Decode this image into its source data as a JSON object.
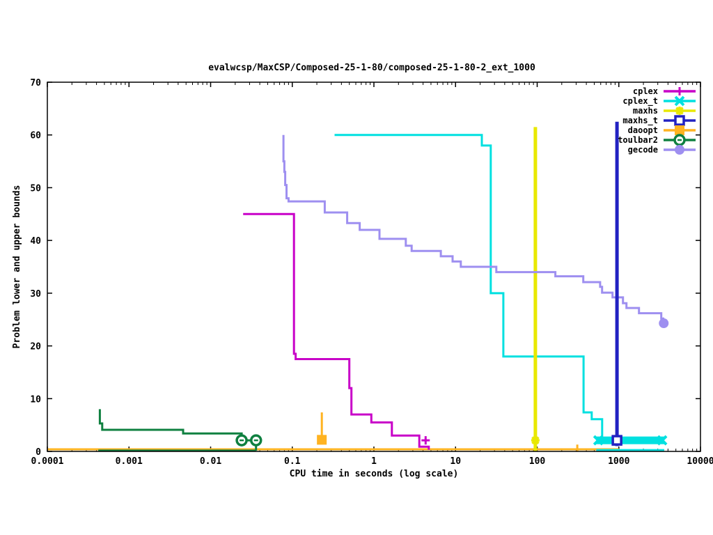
{
  "title": "evalwcsp/MaxCSP/Composed-25-1-80/composed-25-1-80-2_ext_1000",
  "chart_data": {
    "type": "line",
    "title": "evalwcsp/MaxCSP/Composed-25-1-80/composed-25-1-80-2_ext_1000",
    "xlabel": "CPU time in seconds (log scale)",
    "ylabel": "Problem lower and upper bounds",
    "x_scale": "log",
    "xlim": [
      0.0001,
      10000
    ],
    "ylim": [
      0,
      70
    ],
    "x_ticks": [
      0.0001,
      0.001,
      0.01,
      0.1,
      1,
      10,
      100,
      1000,
      10000
    ],
    "x_tick_labels": [
      "0.0001",
      "0.001",
      "0.01",
      "0.1",
      "1",
      "10",
      "100",
      "1000",
      "10000"
    ],
    "y_ticks": [
      0,
      10,
      20,
      30,
      40,
      50,
      60,
      70
    ],
    "grid": false,
    "legend_position": "top-right",
    "series": [
      {
        "name": "daoopt",
        "color": "#ffb321",
        "marker": "square-filled",
        "lw": 3,
        "lines": [
          [
            [
              0.0001,
              0.4
            ],
            [
              1000,
              0.4
            ]
          ],
          [
            [
              0.23,
              7.4
            ],
            [
              0.23,
              2.3
            ]
          ],
          [
            [
              310,
              0.05
            ],
            [
              310,
              1.3
            ]
          ]
        ],
        "markers_at": [
          [
            0.23,
            2.2
          ]
        ]
      },
      {
        "name": "toulbar2",
        "color": "#0f8040",
        "marker": "circle-open",
        "lw": 3,
        "lines": [
          [
            [
              0.00044,
              8
            ],
            [
              0.00044,
              5.3
            ],
            [
              0.00047,
              5.3
            ],
            [
              0.00047,
              4.1
            ],
            [
              0.0046,
              4.1
            ],
            [
              0.0046,
              3.4
            ],
            [
              0.024,
              3.4
            ],
            [
              0.024,
              2.1
            ],
            [
              0.036,
              2.1
            ],
            [
              0.036,
              0.15
            ]
          ],
          [
            [
              0.00042,
              0.15
            ],
            [
              0.036,
              0.15
            ]
          ]
        ],
        "markers_at": [
          [
            0.024,
            2.1
          ],
          [
            0.036,
            2.1
          ]
        ]
      },
      {
        "name": "cplex",
        "color": "#c800c8",
        "marker": "plus",
        "lw": 3,
        "lines": [
          [
            [
              0.025,
              45
            ],
            [
              0.105,
              45
            ],
            [
              0.105,
              18.5
            ],
            [
              0.11,
              18.5
            ],
            [
              0.11,
              17.5
            ],
            [
              0.5,
              17.5
            ],
            [
              0.5,
              12
            ],
            [
              0.53,
              12
            ],
            [
              0.53,
              7
            ],
            [
              0.93,
              7
            ],
            [
              0.93,
              5.5
            ],
            [
              1.66,
              5.5
            ],
            [
              1.66,
              3
            ],
            [
              3.6,
              3
            ],
            [
              3.6,
              0.9
            ],
            [
              4.7,
              0.9
            ],
            [
              4.7,
              0.3
            ]
          ]
        ],
        "markers_at": [
          [
            4.3,
            2.1
          ]
        ]
      },
      {
        "name": "cplex_t",
        "color": "#00e0e0",
        "marker": "x",
        "lw": 3,
        "lines": [
          [
            [
              0.33,
              60
            ],
            [
              21,
              60
            ],
            [
              21,
              58
            ],
            [
              27,
              58
            ],
            [
              27,
              30
            ],
            [
              38.5,
              30
            ],
            [
              38.5,
              18
            ],
            [
              370,
              18
            ],
            [
              370,
              7.4
            ],
            [
              465,
              7.4
            ],
            [
              465,
              6.1
            ],
            [
              625,
              6.1
            ],
            [
              625,
              2.6
            ]
          ],
          [
            [
              530,
              0.25
            ],
            [
              3600,
              0.25
            ]
          ]
        ],
        "band": {
          "x": [
            530,
            3600
          ],
          "y": 2.1,
          "thickness_px": 11
        },
        "markers_at": [
          [
            560,
            2.1
          ],
          [
            3400,
            2.1
          ]
        ]
      },
      {
        "name": "maxhs",
        "color": "#e8e800",
        "marker": "star",
        "lw": 5,
        "lines": [
          [
            [
              95,
              0.05
            ],
            [
              95,
              61.5
            ]
          ]
        ],
        "markers_at": [
          [
            95,
            2.1
          ]
        ]
      },
      {
        "name": "gecode",
        "color": "#9e8ff0",
        "marker": "circle-filled",
        "lw": 3,
        "lines": [
          [
            [
              0.078,
              60
            ],
            [
              0.078,
              55
            ],
            [
              0.08,
              55
            ],
            [
              0.08,
              53
            ],
            [
              0.082,
              53
            ],
            [
              0.082,
              50.5
            ],
            [
              0.085,
              50.5
            ],
            [
              0.085,
              48
            ],
            [
              0.09,
              48
            ],
            [
              0.09,
              47.4
            ],
            [
              0.25,
              47.4
            ],
            [
              0.25,
              45.3
            ],
            [
              0.47,
              45.3
            ],
            [
              0.47,
              43.3
            ],
            [
              0.67,
              43.3
            ],
            [
              0.67,
              42
            ],
            [
              1.17,
              42
            ],
            [
              1.17,
              40.3
            ],
            [
              2.46,
              40.3
            ],
            [
              2.46,
              39
            ],
            [
              2.9,
              39
            ],
            [
              2.9,
              38
            ],
            [
              6.6,
              38
            ],
            [
              6.6,
              37
            ],
            [
              9.2,
              37
            ],
            [
              9.2,
              36
            ],
            [
              11.6,
              36
            ],
            [
              11.6,
              35
            ],
            [
              31.6,
              35
            ],
            [
              31.6,
              34
            ],
            [
              167,
              34
            ],
            [
              167,
              33.2
            ],
            [
              367,
              33.2
            ],
            [
              367,
              32.1
            ],
            [
              590,
              32.1
            ],
            [
              590,
              31.2
            ],
            [
              624,
              31.2
            ],
            [
              624,
              30.1
            ],
            [
              837,
              30.1
            ],
            [
              837,
              29.2
            ],
            [
              1125,
              29.2
            ],
            [
              1125,
              28.1
            ],
            [
              1240,
              28.1
            ],
            [
              1240,
              27.2
            ],
            [
              1766,
              27.2
            ],
            [
              1766,
              26.2
            ],
            [
              3310,
              26.2
            ],
            [
              3310,
              25.2
            ],
            [
              3500,
              25.2
            ],
            [
              3500,
              24.2
            ],
            [
              3600,
              24.2
            ]
          ]
        ],
        "markers_at": [
          [
            3550,
            24.3
          ]
        ]
      },
      {
        "name": "maxhs_t",
        "color": "#2222c2",
        "marker": "square-open",
        "lw": 5,
        "lines": [
          [
            [
              950,
              62.5
            ],
            [
              950,
              1.0
            ]
          ]
        ],
        "markers_at": [
          [
            950,
            2.1
          ]
        ]
      }
    ],
    "legend_order": [
      "cplex",
      "cplex_t",
      "maxhs",
      "maxhs_t",
      "daoopt",
      "toulbar2",
      "gecode"
    ]
  }
}
